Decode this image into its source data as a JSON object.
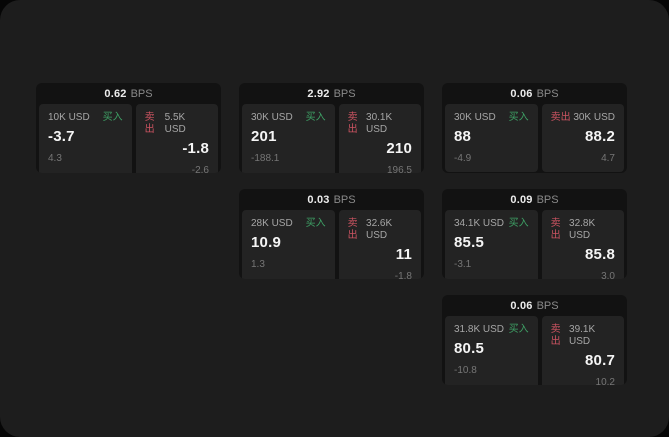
{
  "labels": {
    "bps_unit": "BPS",
    "buy": "买入",
    "sell": "卖出"
  },
  "colors": {
    "buy_accent": "#3ea065",
    "sell_accent": "#cd5462",
    "page_bg": "#1d1d1d",
    "card_bg": "#121212",
    "panel_bg": "#232323"
  },
  "cards": [
    {
      "row": 1,
      "col": 1,
      "bps": "0.62",
      "buy": {
        "size": "10K USD",
        "price": "-3.7",
        "delta": "4.3"
      },
      "sell": {
        "size": "5.5K USD",
        "price": "-1.8",
        "delta": "-2.6"
      }
    },
    {
      "row": 1,
      "col": 2,
      "bps": "2.92",
      "buy": {
        "size": "30K USD",
        "price": "201",
        "delta": "-188.1"
      },
      "sell": {
        "size": "30.1K USD",
        "price": "210",
        "delta": "196.5"
      }
    },
    {
      "row": 1,
      "col": 3,
      "bps": "0.06",
      "buy": {
        "size": "30K USD",
        "price": "88",
        "delta": "-4.9"
      },
      "sell": {
        "size": "30K USD",
        "price": "88.2",
        "delta": "4.7"
      }
    },
    {
      "row": 2,
      "col": 2,
      "bps": "0.03",
      "buy": {
        "size": "28K USD",
        "price": "10.9",
        "delta": "1.3"
      },
      "sell": {
        "size": "32.6K USD",
        "price": "11",
        "delta": "-1.8"
      }
    },
    {
      "row": 2,
      "col": 3,
      "bps": "0.09",
      "buy": {
        "size": "34.1K USD",
        "price": "85.5",
        "delta": "-3.1"
      },
      "sell": {
        "size": "32.8K USD",
        "price": "85.8",
        "delta": "3.0"
      }
    },
    {
      "row": 3,
      "col": 3,
      "bps": "0.06",
      "buy": {
        "size": "31.8K USD",
        "price": "80.5",
        "delta": "-10.8"
      },
      "sell": {
        "size": "39.1K USD",
        "price": "80.7",
        "delta": "10.2"
      }
    }
  ]
}
